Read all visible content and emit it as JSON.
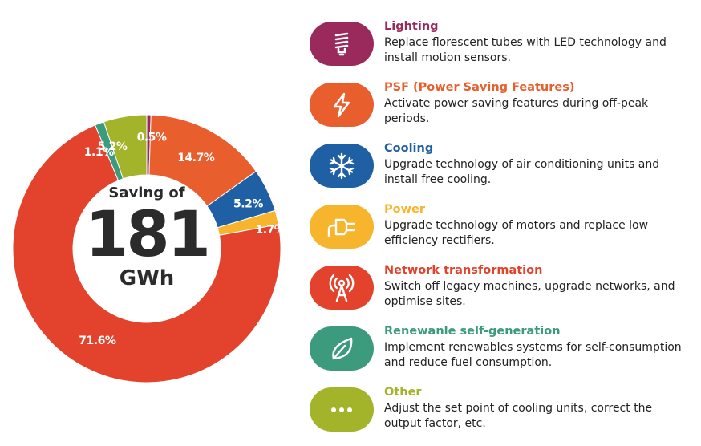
{
  "chart_data": {
    "type": "pie",
    "donut": true,
    "center": {
      "caption": "Saving of",
      "value": "181",
      "unit": "GWh"
    },
    "slices": [
      {
        "value": 0.5,
        "label": "0.5%",
        "color": "#9a2a5c"
      },
      {
        "value": 14.7,
        "label": "14.7%",
        "color": "#e85f2d"
      },
      {
        "value": 5.2,
        "label": "5.2%",
        "color": "#1f5fa4"
      },
      {
        "value": 1.7,
        "label": "1.7%",
        "color": "#f6b52c"
      },
      {
        "value": 71.6,
        "label": "71.6%",
        "color": "#e3432c"
      },
      {
        "value": 1.1,
        "label": "1.1%",
        "color": "#3c9b7d"
      },
      {
        "value": 5.2,
        "label": "5.2%",
        "color": "#a3b42a"
      }
    ]
  },
  "legend": [
    {
      "title": "Lighting",
      "desc": "Replace florescent tubes with LED technology and install motion sensors.",
      "color": "#9a2a5c",
      "icon": "lightbulb-icon"
    },
    {
      "title": "PSF (Power Saving Features)",
      "desc": "Activate power saving features during off-peak periods.",
      "color": "#e85f2d",
      "icon": "lightning-icon"
    },
    {
      "title": "Cooling",
      "desc": "Upgrade technology of air conditioning units and install free cooling.",
      "color": "#1f5fa4",
      "icon": "snowflake-icon"
    },
    {
      "title": "Power",
      "desc": "Upgrade technology of motors and replace low efficiency rectifiers.",
      "color": "#f6b52c",
      "icon": "plug-icon"
    },
    {
      "title": "Network transformation",
      "desc": "Switch off legacy machines, upgrade networks, and optimise sites.",
      "color": "#e3432c",
      "icon": "antenna-icon"
    },
    {
      "title": "Renewanle self-generation",
      "desc": "Implement renewables systems for self-consumption and reduce fuel consumption.",
      "color": "#3c9b7d",
      "icon": "leaf-icon"
    },
    {
      "title": "Other",
      "desc": "Adjust the set point of cooling units, correct the output factor, etc.",
      "color": "#a3b42a",
      "icon": "ellipsis-icon"
    }
  ]
}
